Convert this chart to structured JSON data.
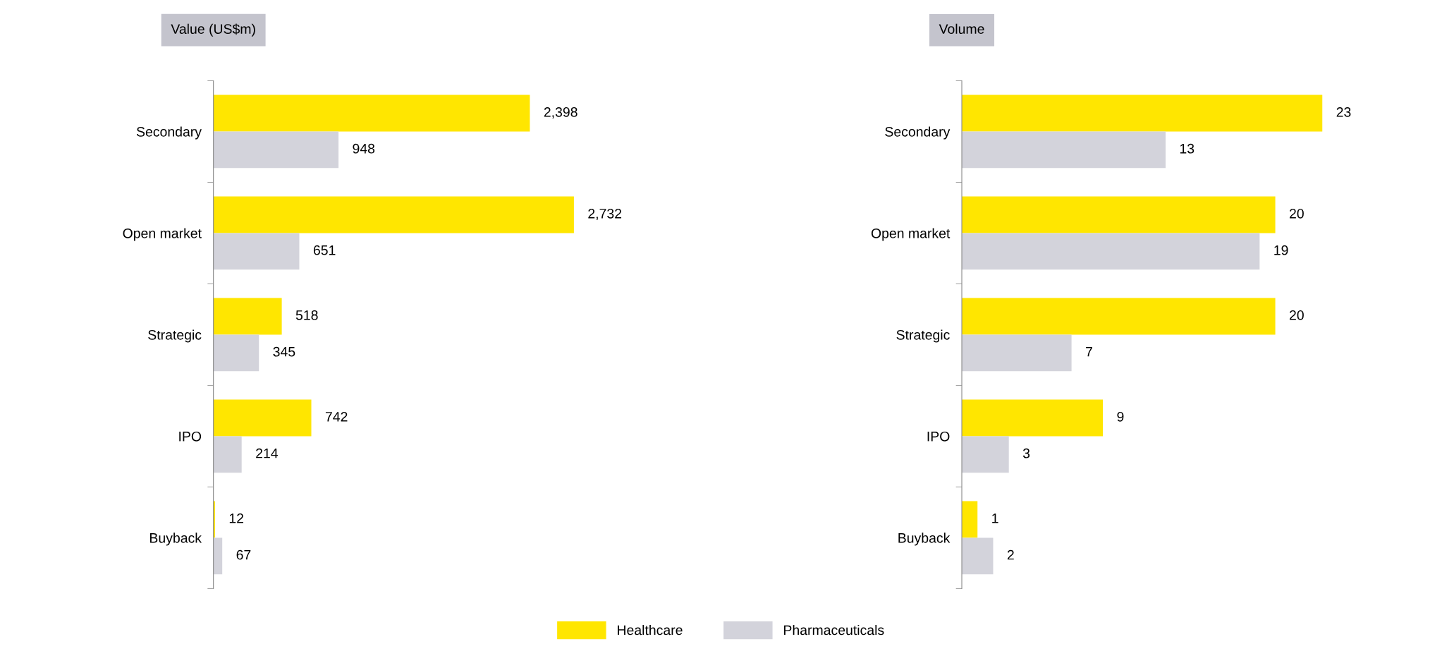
{
  "chart_data": [
    {
      "type": "bar",
      "orientation": "horizontal",
      "title": "Value (US$m)",
      "categories": [
        "Secondary",
        "Open market",
        "Strategic",
        "IPO",
        "Buyback"
      ],
      "tick_labels": "y",
      "data_labels": true,
      "legend": "bottom",
      "series": [
        {
          "name": "Healthcare",
          "color": "#ffe600",
          "values": [
            2398,
            2732,
            518,
            742,
            12
          ],
          "value_labels": [
            "2,398",
            "2,732",
            "518",
            "742",
            "12"
          ]
        },
        {
          "name": "Pharmaceuticals",
          "color": "#d3d3db",
          "values": [
            948,
            651,
            345,
            214,
            67
          ],
          "value_labels": [
            "948",
            "651",
            "345",
            "214",
            "67"
          ]
        }
      ]
    },
    {
      "type": "bar",
      "orientation": "horizontal",
      "title": "Volume",
      "categories": [
        "Secondary",
        "Open market",
        "Strategic",
        "IPO",
        "Buyback"
      ],
      "tick_labels": "y",
      "data_labels": true,
      "legend": "bottom",
      "series": [
        {
          "name": "Healthcare",
          "color": "#ffe600",
          "values": [
            23,
            20,
            20,
            9,
            1
          ]
        },
        {
          "name": "Pharmaceuticals",
          "color": "#d3d3db",
          "values": [
            13,
            19,
            7,
            3,
            2
          ]
        }
      ]
    }
  ]
}
